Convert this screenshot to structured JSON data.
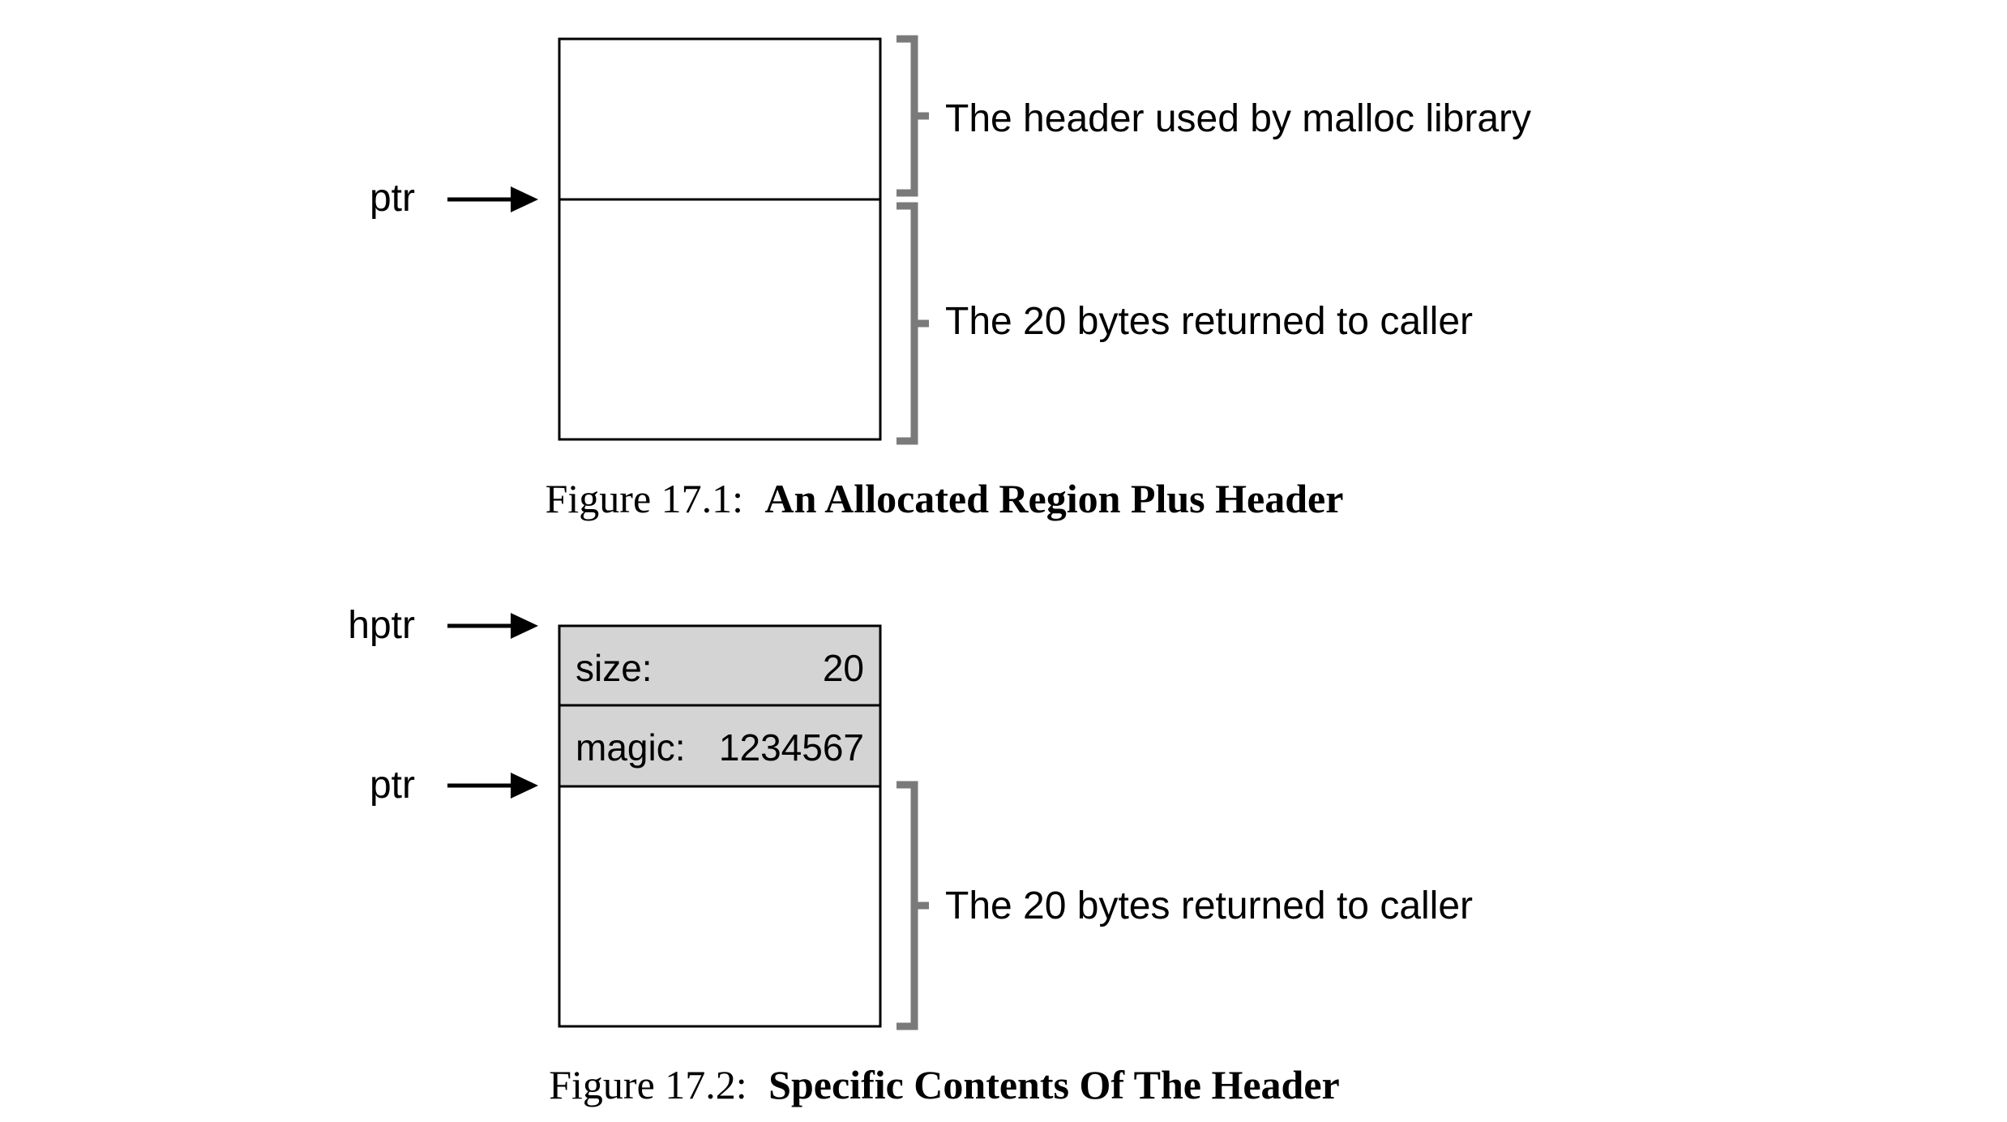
{
  "figure1": {
    "pointer_label": "ptr",
    "header_annotation": "The header used by malloc library",
    "body_annotation": "The 20 bytes returned to caller",
    "caption_prefix": "Figure 17.1:",
    "caption_title": "An Allocated Region Plus Header"
  },
  "figure2": {
    "header_pointer_label": "hptr",
    "pointer_label": "ptr",
    "size_field": {
      "label": "size:",
      "value": "20"
    },
    "magic_field": {
      "label": "magic:",
      "value": "1234567"
    },
    "body_annotation": "The 20 bytes returned to caller",
    "caption_prefix": "Figure 17.2:",
    "caption_title": "Specific Contents Of The Header"
  },
  "colors": {
    "stroke": "#000000",
    "bracket": "#7a7a7a",
    "header_fill": "#d4d4d4",
    "background": "#ffffff"
  }
}
